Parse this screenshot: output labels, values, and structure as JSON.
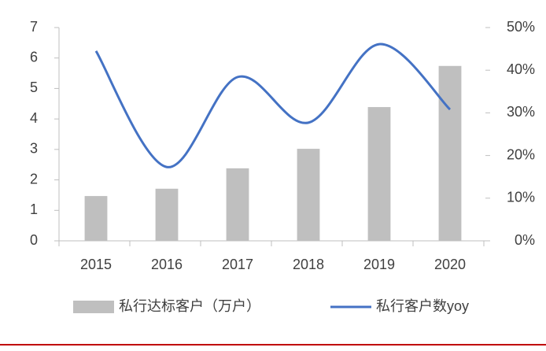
{
  "chart_data": {
    "type": "bar",
    "categories": [
      "2015",
      "2016",
      "2017",
      "2018",
      "2019",
      "2020"
    ],
    "series": [
      {
        "name": "私行达标客户（万户）",
        "type": "bar",
        "color": "#bfbfbf",
        "values": [
          1.47,
          1.71,
          2.38,
          3.02,
          4.39,
          5.74
        ]
      },
      {
        "name": "私行客户数yoy",
        "type": "line",
        "axis": "y2",
        "color": "#4472c4",
        "values": [
          44.5,
          17.3,
          38.4,
          27.7,
          46.1,
          30.8
        ]
      }
    ],
    "ylim": [
      0,
      7
    ],
    "yticks": [
      0,
      1,
      2,
      3,
      4,
      5,
      6,
      7
    ],
    "y2lim": [
      0,
      50
    ],
    "y2ticks": [
      {
        "value": 0,
        "label": "0%"
      },
      {
        "value": 10,
        "label": "10%"
      },
      {
        "value": 20,
        "label": "20%"
      },
      {
        "value": 30,
        "label": "30%"
      },
      {
        "value": 40,
        "label": "40%"
      },
      {
        "value": 50,
        "label": "50%"
      }
    ],
    "grid": false,
    "legend": "bottom"
  }
}
